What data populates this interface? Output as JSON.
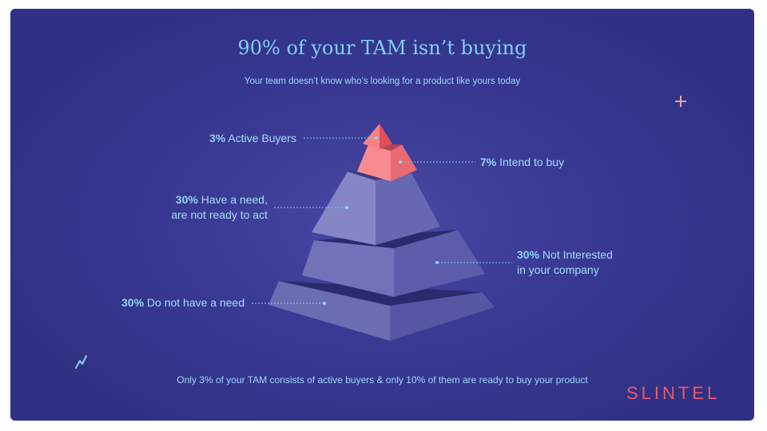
{
  "title": "90% of your TAM isn’t buying",
  "subtitle": "Your team doesn’t know who’s looking for a product like yours today",
  "tiers": {
    "active": {
      "pct": "3%",
      "text": "Active Buyers"
    },
    "intend": {
      "pct": "7%",
      "text": "Intend to buy"
    },
    "need_not_ready": {
      "pct": "30%",
      "line1": "Have a need,",
      "line2": "are not ready to act"
    },
    "not_interested": {
      "pct": "30%",
      "line1": "Not Interested",
      "line2": "in your company"
    },
    "no_need": {
      "pct": "30%",
      "text": "Do not have a need"
    }
  },
  "footnote": "Only 3% of your TAM consists of active buyers & only 10% of them are ready to buy your product",
  "brand": "SLINTEL",
  "colors": {
    "background": "#34348c",
    "accent_text": "#7fd0f6",
    "brand": "#e85a6a",
    "pyramid_top": "#f4787e",
    "pyramid_body": "#6f6fb8"
  },
  "icons": [
    "plus-icon",
    "squiggle-icon"
  ]
}
